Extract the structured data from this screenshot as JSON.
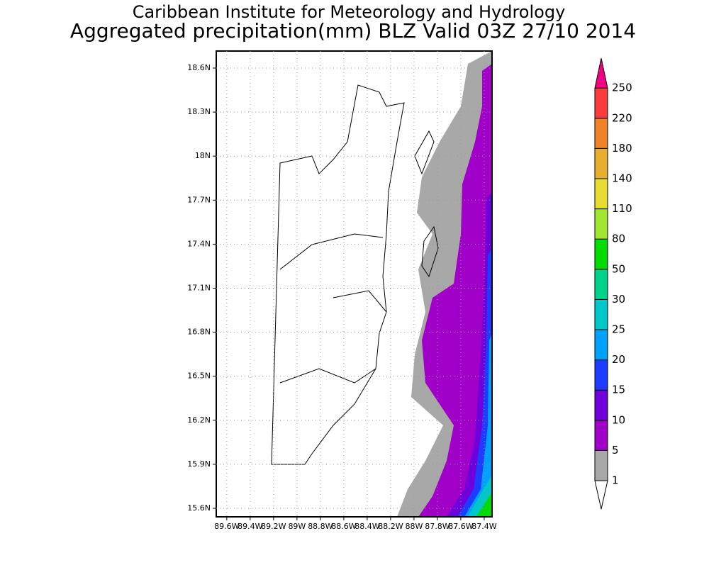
{
  "chart_data": {
    "type": "map",
    "title": "Caribbean Institute for Meteorology and Hydrology",
    "subtitle": "Aggregated precipitation(mm) BLZ Valid 03Z 27/10 2014",
    "xlim": [
      -89.69,
      -87.333
    ],
    "ylim": [
      15.542,
      18.716
    ],
    "xticks": [
      {
        "value": -89.6,
        "label": "89.6W"
      },
      {
        "value": -89.4,
        "label": "89.4W"
      },
      {
        "value": -89.2,
        "label": "89.2W"
      },
      {
        "value": -89.0,
        "label": "89W"
      },
      {
        "value": -88.8,
        "label": "88.8W"
      },
      {
        "value": -88.6,
        "label": "88.6W"
      },
      {
        "value": -88.4,
        "label": "88.4W"
      },
      {
        "value": -88.2,
        "label": "88.2W"
      },
      {
        "value": -88.0,
        "label": "88W"
      },
      {
        "value": -87.8,
        "label": "87.8W"
      },
      {
        "value": -87.6,
        "label": "87.6W"
      },
      {
        "value": -87.4,
        "label": "87.4W"
      }
    ],
    "yticks": [
      {
        "value": 15.6,
        "label": "15.6N"
      },
      {
        "value": 15.9,
        "label": "15.9N"
      },
      {
        "value": 16.2,
        "label": "16.2N"
      },
      {
        "value": 16.5,
        "label": "16.5N"
      },
      {
        "value": 16.8,
        "label": "16.8N"
      },
      {
        "value": 17.1,
        "label": "17.1N"
      },
      {
        "value": 17.4,
        "label": "17.4N"
      },
      {
        "value": 17.7,
        "label": "17.7N"
      },
      {
        "value": 18.0,
        "label": "18N"
      },
      {
        "value": 18.3,
        "label": "18.3N"
      },
      {
        "value": 18.6,
        "label": "18.6N"
      }
    ],
    "grid": true,
    "levels": [
      1,
      5,
      10,
      15,
      20,
      25,
      30,
      50,
      80,
      110,
      140,
      180,
      220,
      250
    ],
    "colors": [
      "#ffffff",
      "#a8a8a8",
      "#a000c8",
      "#6e00dc",
      "#1e3cff",
      "#00a0ff",
      "#00c8c8",
      "#00d28c",
      "#00dc00",
      "#a0e632",
      "#e6dc32",
      "#e6af2d",
      "#f08228",
      "#fa3c3c",
      "#f00082"
    ]
  }
}
